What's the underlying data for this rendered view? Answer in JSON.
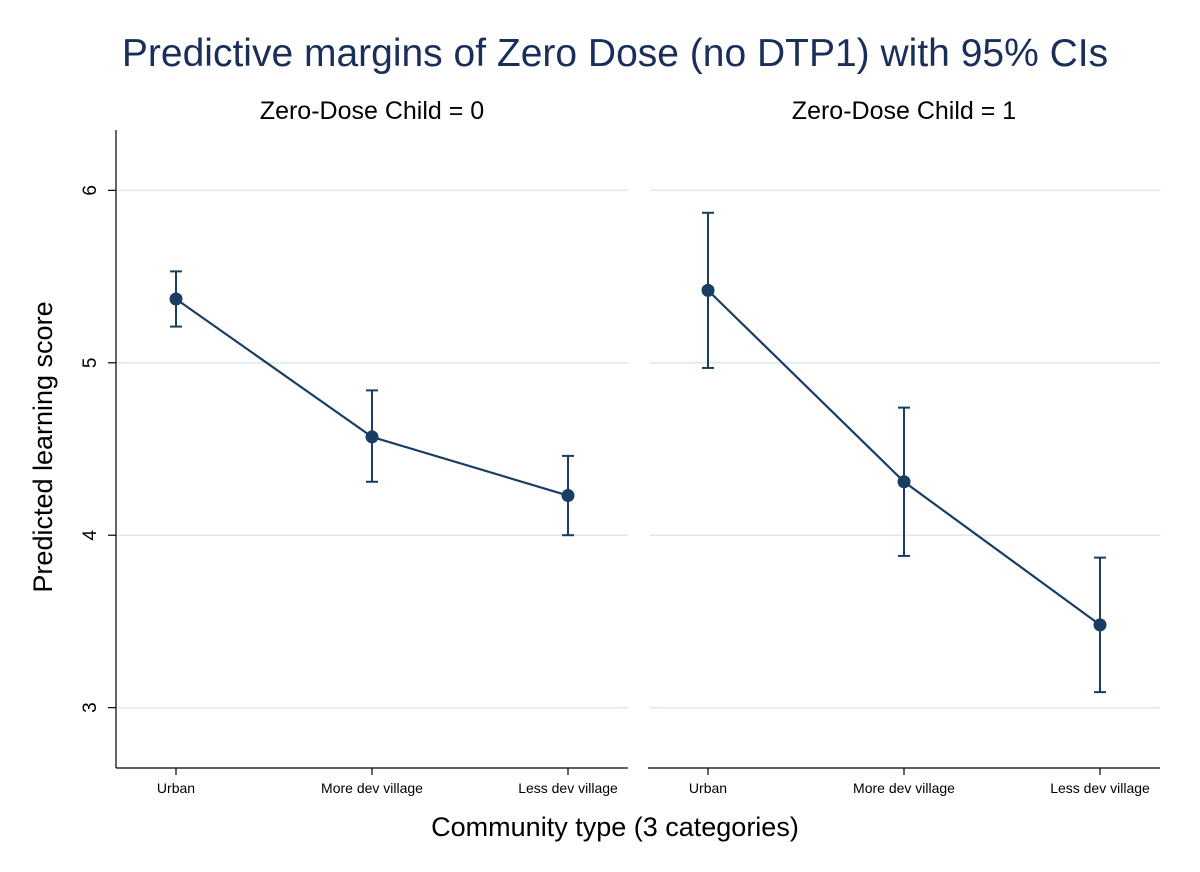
{
  "chart_data": {
    "type": "line",
    "title": "Predictive margins of Zero Dose (no DTP1) with 95% CIs",
    "xlabel": "Community type (3 categories)",
    "ylabel": "Predicted learning score",
    "categories": [
      "Urban",
      "More dev village",
      "Less dev village"
    ],
    "ylim": [
      2.65,
      6.35
    ],
    "yticks": [
      3,
      4,
      5,
      6
    ],
    "grid": true,
    "colors": {
      "series": "#1a3d63",
      "title": "#1a2e5a",
      "grid": "#dfe8ea"
    },
    "panels": [
      {
        "title": "Zero-Dose Child = 0",
        "values": [
          5.37,
          4.57,
          4.23
        ],
        "ci_low": [
          5.21,
          4.31,
          4.0
        ],
        "ci_high": [
          5.53,
          4.84,
          4.46
        ]
      },
      {
        "title": "Zero-Dose Child = 1",
        "values": [
          5.42,
          4.31,
          3.48
        ],
        "ci_low": [
          4.97,
          3.88,
          3.09
        ],
        "ci_high": [
          5.87,
          4.74,
          3.87
        ]
      }
    ]
  }
}
